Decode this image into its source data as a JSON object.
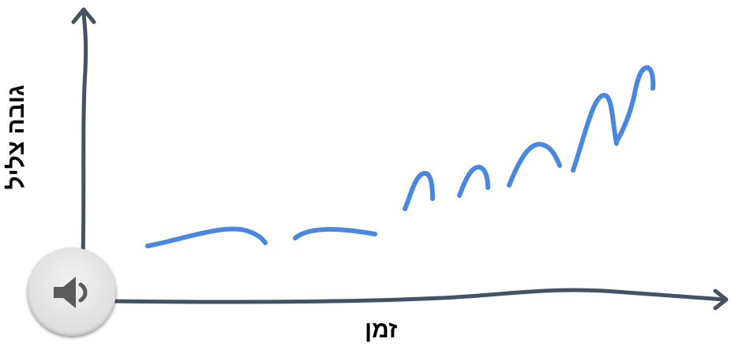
{
  "axes": {
    "x_label": "זמן",
    "y_label": "גובה צליל"
  },
  "colors": {
    "axis": "#445266",
    "pitch_line": "#4a88e0",
    "button_bg": "#dedede",
    "speaker": "#5a5a5a"
  },
  "icons": {
    "sound_button": "speaker-icon"
  }
}
